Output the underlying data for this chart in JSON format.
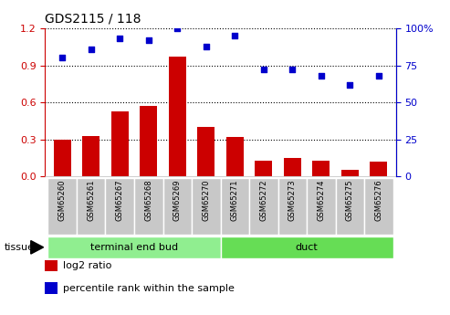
{
  "title": "GDS2115 / 118",
  "samples": [
    "GSM65260",
    "GSM65261",
    "GSM65267",
    "GSM65268",
    "GSM65269",
    "GSM65270",
    "GSM65271",
    "GSM65272",
    "GSM65273",
    "GSM65274",
    "GSM65275",
    "GSM65276"
  ],
  "log2_ratio": [
    0.3,
    0.33,
    0.53,
    0.57,
    0.97,
    0.4,
    0.32,
    0.13,
    0.15,
    0.13,
    0.05,
    0.12
  ],
  "percentile_rank": [
    80,
    86,
    93,
    92,
    100,
    88,
    95,
    72,
    72,
    68,
    62,
    68
  ],
  "bar_color": "#cc0000",
  "dot_color": "#0000cc",
  "left_ylim": [
    0,
    1.2
  ],
  "right_ylim": [
    0,
    100
  ],
  "left_yticks": [
    0,
    0.3,
    0.6,
    0.9,
    1.2
  ],
  "right_yticks": [
    0,
    25,
    50,
    75,
    100
  ],
  "tissue_groups": [
    {
      "label": "terminal end bud",
      "start": 0,
      "end": 6,
      "color": "#90ee90"
    },
    {
      "label": "duct",
      "start": 6,
      "end": 12,
      "color": "#66dd55"
    }
  ],
  "tissue_label": "tissue",
  "legend_items": [
    {
      "color": "#cc0000",
      "label": "log2 ratio"
    },
    {
      "color": "#0000cc",
      "label": "percentile rank within the sample"
    }
  ],
  "bg_color": "#ffffff",
  "tick_bg_color": "#c8c8c8",
  "left_axis_color": "#cc0000",
  "right_axis_color": "#0000cc"
}
